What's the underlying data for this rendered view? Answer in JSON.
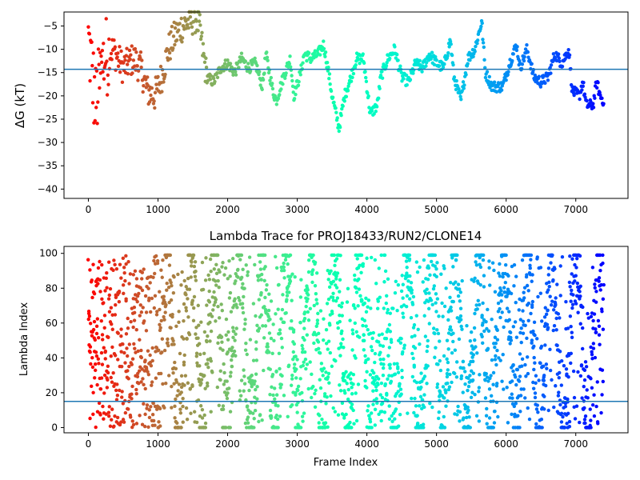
{
  "chart_data": [
    {
      "type": "scatter",
      "title": "",
      "xlabel": "",
      "ylabel": "ΔG (kT)",
      "xlim": [
        -350,
        7750
      ],
      "ylim": [
        -42,
        -2
      ],
      "xticks": [
        0,
        1000,
        2000,
        3000,
        4000,
        5000,
        6000,
        7000
      ],
      "yticks": [
        -40,
        -35,
        -30,
        -25,
        -20,
        -15,
        -10,
        -5
      ],
      "hline": -14.3,
      "hline_color": "#1f77b4",
      "colormap": "rainbow (reversed along frame index)",
      "n_frames": 7400,
      "trace_anchors": [
        [
          0,
          -8
        ],
        [
          50,
          -14
        ],
        [
          100,
          -22
        ],
        [
          150,
          -18
        ],
        [
          220,
          -12
        ],
        [
          350,
          -10
        ],
        [
          500,
          -14
        ],
        [
          650,
          -12
        ],
        [
          750,
          -14
        ],
        [
          850,
          -19
        ],
        [
          950,
          -20
        ],
        [
          1050,
          -16
        ],
        [
          1150,
          -10
        ],
        [
          1250,
          -7
        ],
        [
          1350,
          -5
        ],
        [
          1450,
          -4
        ],
        [
          1550,
          -3
        ],
        [
          1600,
          -6
        ],
        [
          1700,
          -16
        ],
        [
          1800,
          -17
        ],
        [
          1900,
          -14
        ],
        [
          2000,
          -13
        ],
        [
          2100,
          -15
        ],
        [
          2200,
          -12
        ],
        [
          2300,
          -14
        ],
        [
          2400,
          -13
        ],
        [
          2500,
          -18
        ],
        [
          2550,
          -11
        ],
        [
          2650,
          -19
        ],
        [
          2700,
          -21
        ],
        [
          2800,
          -16
        ],
        [
          2900,
          -12
        ],
        [
          2950,
          -20
        ],
        [
          3050,
          -15
        ],
        [
          3100,
          -11
        ],
        [
          3200,
          -12
        ],
        [
          3300,
          -11
        ],
        [
          3380,
          -9
        ],
        [
          3450,
          -15
        ],
        [
          3500,
          -20
        ],
        [
          3600,
          -27
        ],
        [
          3680,
          -20
        ],
        [
          3750,
          -17
        ],
        [
          3850,
          -12
        ],
        [
          3950,
          -12
        ],
        [
          4050,
          -24
        ],
        [
          4150,
          -22
        ],
        [
          4200,
          -16
        ],
        [
          4300,
          -12
        ],
        [
          4400,
          -10
        ],
        [
          4500,
          -16
        ],
        [
          4600,
          -17
        ],
        [
          4700,
          -13
        ],
        [
          4800,
          -14
        ],
        [
          4900,
          -11
        ],
        [
          5000,
          -13
        ],
        [
          5100,
          -14
        ],
        [
          5200,
          -8
        ],
        [
          5250,
          -16
        ],
        [
          5350,
          -21
        ],
        [
          5450,
          -12
        ],
        [
          5550,
          -10
        ],
        [
          5650,
          -4
        ],
        [
          5700,
          -15
        ],
        [
          5800,
          -18
        ],
        [
          5950,
          -18
        ],
        [
          6050,
          -13
        ],
        [
          6150,
          -9
        ],
        [
          6200,
          -14
        ],
        [
          6300,
          -10
        ],
        [
          6400,
          -16
        ],
        [
          6500,
          -17
        ],
        [
          6600,
          -16
        ],
        [
          6700,
          -11
        ],
        [
          6800,
          -13
        ],
        [
          6900,
          -10
        ],
        [
          6950,
          -19
        ],
        [
          7050,
          -20
        ],
        [
          7100,
          -17
        ],
        [
          7150,
          -22
        ],
        [
          7250,
          -22
        ],
        [
          7300,
          -17
        ],
        [
          7350,
          -20
        ],
        [
          7400,
          -21
        ]
      ]
    },
    {
      "type": "scatter",
      "title": "Lambda Trace for PROJ18433/RUN2/CLONE14",
      "xlabel": "Frame Index",
      "ylabel": "Lambda Index",
      "xlim": [
        -350,
        7750
      ],
      "ylim": [
        -3,
        104
      ],
      "xticks": [
        0,
        1000,
        2000,
        3000,
        4000,
        5000,
        6000,
        7000
      ],
      "yticks": [
        0,
        20,
        40,
        60,
        80,
        100
      ],
      "hline": 15,
      "hline_color": "#1f77b4",
      "colormap": "rainbow (reversed along frame index)",
      "n_frames": 7400,
      "value_range": [
        0,
        99
      ]
    }
  ]
}
